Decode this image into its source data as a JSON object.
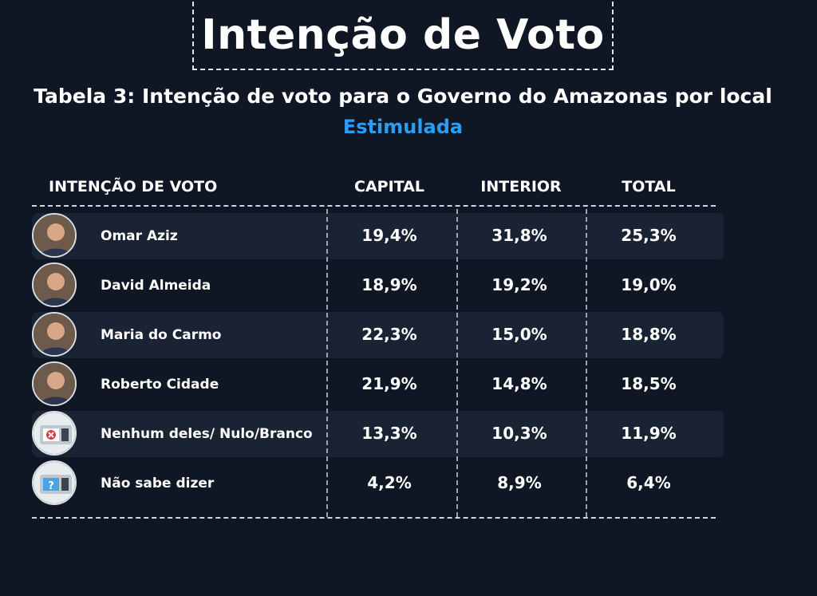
{
  "title": "Intenção de Voto",
  "subtitle": "Tabela 3: Intenção de voto para o Governo do Amazonas por local",
  "subtitle2": "Estimulada",
  "colors": {
    "background": "#0f1624",
    "accent": "#2a9df4",
    "row_shade": "#1a2333"
  },
  "chart_data": {
    "type": "table",
    "columns": [
      "INTENÇÃO DE VOTO",
      "CAPITAL",
      "INTERIOR",
      "TOTAL"
    ],
    "rows": [
      {
        "name": "Omar Aziz",
        "icon": "candidate-photo",
        "capital": "19,4%",
        "interior": "31,8%",
        "total": "25,3%"
      },
      {
        "name": "David Almeida",
        "icon": "candidate-photo",
        "capital": "18,9%",
        "interior": "19,2%",
        "total": "19,0%"
      },
      {
        "name": "Maria do Carmo",
        "icon": "candidate-photo",
        "capital": "22,3%",
        "interior": "15,0%",
        "total": "18,8%"
      },
      {
        "name": "Roberto Cidade",
        "icon": "candidate-photo",
        "capital": "21,9%",
        "interior": "14,8%",
        "total": "18,5%"
      },
      {
        "name": "Nenhum deles/ Nulo/Branco",
        "icon": "ballot-x-icon",
        "capital": "13,3%",
        "interior": "10,3%",
        "total": "11,9%"
      },
      {
        "name": "Não sabe dizer",
        "icon": "ballot-question-icon",
        "capital": "4,2%",
        "interior": "8,9%",
        "total": "6,4%"
      }
    ]
  }
}
